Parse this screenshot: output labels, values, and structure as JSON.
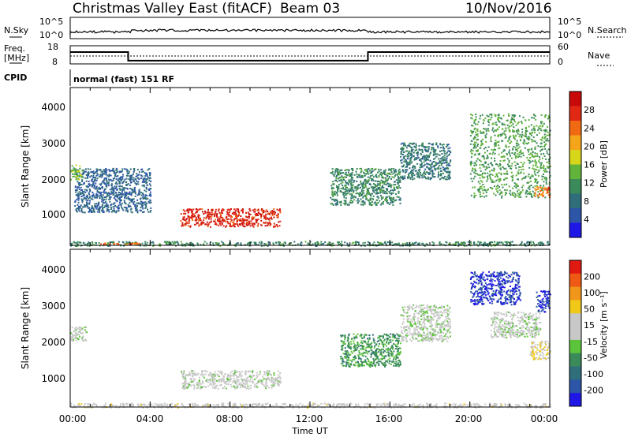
{
  "header": {
    "title": "Christmas Valley East (fitACF)",
    "beam": "Beam 03",
    "date": "10/Nov/2016"
  },
  "colors": {
    "power_scale": [
      "#1f17e6",
      "#2d55a8",
      "#2f6e7a",
      "#3a8a5a",
      "#62b33a",
      "#d8d61a",
      "#f5a51a",
      "#f06a14",
      "#e02814",
      "#c80a0a"
    ],
    "velocity_scale": [
      "#1f17e6",
      "#2d55a8",
      "#2f6e7a",
      "#3a8a5a",
      "#5cc43a",
      "#c8c8c8",
      "#c8c8c8",
      "#f0c818",
      "#f0961a",
      "#ee5a14",
      "#e01a10"
    ]
  },
  "panels": {
    "nsky": {
      "label": "N.Sky",
      "right_label": "N.Search",
      "left_ticks": [
        "10^5",
        "10^0"
      ],
      "right_ticks": [
        "10^5",
        "10^0"
      ]
    },
    "freq": {
      "label_line1": "Freq.",
      "label_line2": "[MHz]",
      "right_label": "Nave",
      "left_ticks": [
        "18",
        "8"
      ],
      "right_ticks": [
        "60",
        "0"
      ]
    },
    "cpid": {
      "label": "CPID",
      "text": "normal (fast) 151 RF"
    },
    "power": {
      "ylabel": "Slant Range [km]",
      "y_ticks": [
        "4000",
        "3000",
        "2000",
        "1000"
      ],
      "cbar_label": "Power [dB]",
      "cbar_ticks": [
        "28",
        "24",
        "20",
        "16",
        "12",
        "8",
        "4"
      ]
    },
    "velocity": {
      "ylabel": "Slant Range [km]",
      "y_ticks": [
        "4000",
        "3000",
        "2000",
        "1000"
      ],
      "cbar_label": "Velocity [m s⁻¹]",
      "cbar_ticks": [
        "200",
        "100",
        "50",
        "15",
        "-15",
        "-50",
        "-100",
        "-200"
      ]
    },
    "x_ticks": [
      "00:00",
      "04:00",
      "08:00",
      "12:00",
      "16:00",
      "20:00",
      "00:00"
    ],
    "xlabel": "Time UT"
  },
  "chart_data": {
    "type": "heatmap",
    "title": "Christmas Valley East (fitACF)",
    "xlabel": "Time UT",
    "ylabel": "Slant Range [km]",
    "x_range_hours": [
      0,
      24
    ],
    "y_range_km": [
      180,
      4500
    ],
    "frequency_mhz": [
      {
        "start_h": 0,
        "end_h": 2.9,
        "value": 14.5
      },
      {
        "start_h": 2.9,
        "end_h": 14.9,
        "value": 9.8
      },
      {
        "start_h": 14.9,
        "end_h": 24,
        "value": 14.5
      }
    ],
    "power_regions": [
      {
        "t": [
          0,
          24
        ],
        "r": [
          180,
          300
        ],
        "dB": 10
      },
      {
        "t": [
          1.5,
          3.5
        ],
        "r": [
          220,
          260
        ],
        "dB": 22
      },
      {
        "t": [
          5.5,
          10.5
        ],
        "r": [
          700,
          1200
        ],
        "dB": 26
      },
      {
        "t": [
          0.2,
          4.0
        ],
        "r": [
          1100,
          2300
        ],
        "dB": 6
      },
      {
        "t": [
          0.0,
          0.6
        ],
        "r": [
          2000,
          2400
        ],
        "dB": 14
      },
      {
        "t": [
          13.0,
          16.5
        ],
        "r": [
          1300,
          2300
        ],
        "dB": 10
      },
      {
        "t": [
          16.5,
          19.0
        ],
        "r": [
          2000,
          3000
        ],
        "dB": 8
      },
      {
        "t": [
          20.0,
          24.0
        ],
        "r": [
          1500,
          3800
        ],
        "dB": 12
      },
      {
        "t": [
          23.2,
          24.0
        ],
        "r": [
          1500,
          1800
        ],
        "dB": 22
      }
    ],
    "velocity_regions": [
      {
        "t": [
          0,
          24
        ],
        "r": [
          180,
          300
        ],
        "ms": 30
      },
      {
        "t": [
          5.5,
          10.5
        ],
        "r": [
          700,
          1200
        ],
        "ms": 10
      },
      {
        "t": [
          0.0,
          0.8
        ],
        "r": [
          2000,
          2400
        ],
        "ms": 0
      },
      {
        "t": [
          13.5,
          16.5
        ],
        "r": [
          1300,
          2200
        ],
        "ms": -80
      },
      {
        "t": [
          16.5,
          19.0
        ],
        "r": [
          2000,
          3000
        ],
        "ms": 0
      },
      {
        "t": [
          20.0,
          22.5
        ],
        "r": [
          3000,
          3900
        ],
        "ms": -200
      },
      {
        "t": [
          23.3,
          24.0
        ],
        "r": [
          2800,
          3400
        ],
        "ms": -200
      },
      {
        "t": [
          23.0,
          24.0
        ],
        "r": [
          1500,
          2000
        ],
        "ms": 60
      },
      {
        "t": [
          21.0,
          23.5
        ],
        "r": [
          2100,
          2800
        ],
        "ms": 0
      }
    ],
    "power_range_db": [
      0,
      30
    ],
    "velocity_range_ms": [
      -250,
      250
    ],
    "grid": false
  }
}
